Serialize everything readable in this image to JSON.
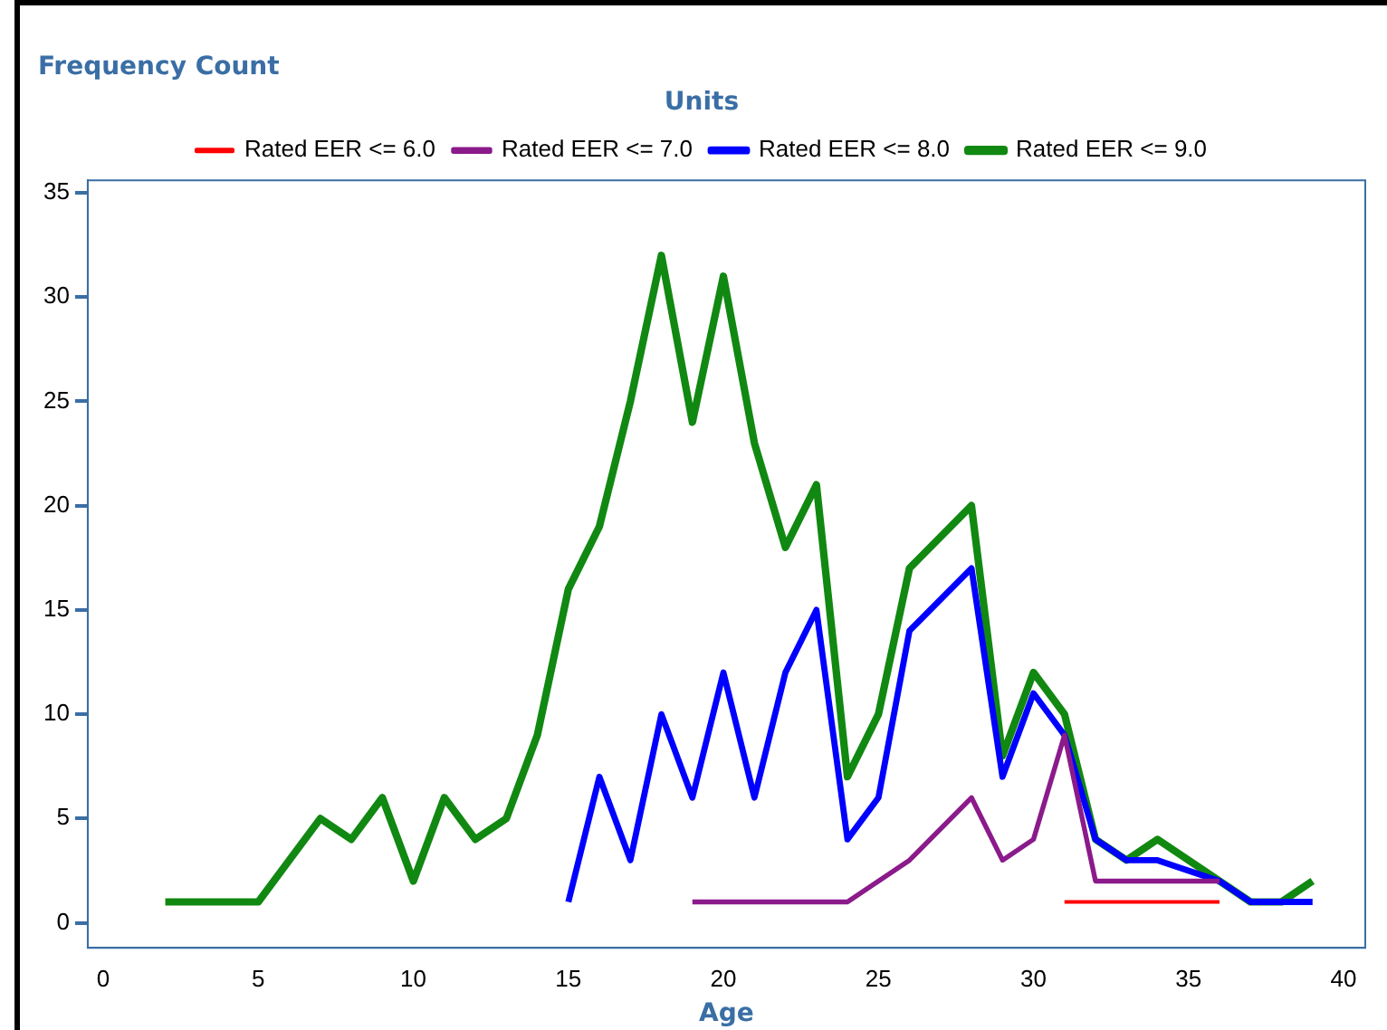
{
  "chart_data": {
    "type": "line",
    "ylabel": "Frequency Count",
    "xlabel": "Age",
    "legend_title": "Units",
    "legend": "top",
    "grid": false,
    "marker": "none",
    "line_style": "solid",
    "xlim": [
      -0.5,
      40.7
    ],
    "xticks": [
      0,
      5,
      10,
      15,
      20,
      25,
      30,
      35,
      40
    ],
    "ylim": [
      -1.2,
      35.6
    ],
    "yticks": [
      0,
      5,
      10,
      15,
      20,
      25,
      30,
      35
    ],
    "series": [
      {
        "name": "Rated EER <= 6.0",
        "color": "#ff0000",
        "x": [
          31,
          32,
          33,
          34,
          35,
          36
        ],
        "values": [
          1,
          1,
          1,
          1,
          1,
          1
        ]
      },
      {
        "name": "Rated EER <= 7.0",
        "color": "#8b1a8b",
        "x": [
          19,
          20,
          21,
          22,
          23,
          24,
          25,
          26,
          28,
          29,
          30,
          31,
          32,
          33,
          34,
          35,
          36
        ],
        "values": [
          1,
          1,
          1,
          1,
          1,
          1,
          2,
          3,
          6,
          3,
          4,
          9,
          2,
          2,
          2,
          2,
          2
        ]
      },
      {
        "name": "Rated EER <= 8.0",
        "color": "#0000ff",
        "x": [
          15,
          16,
          17,
          18,
          19,
          20,
          21,
          22,
          23,
          24,
          25,
          26,
          28,
          29,
          30,
          31,
          32,
          33,
          34,
          36,
          37,
          38,
          39
        ],
        "values": [
          1,
          7,
          3,
          10,
          6,
          12,
          6,
          12,
          15,
          4,
          6,
          14,
          17,
          7,
          11,
          9,
          4,
          3,
          3,
          2,
          1,
          1,
          1
        ]
      },
      {
        "name": "Rated EER <= 9.0",
        "color": "#118811",
        "x": [
          2,
          3,
          4,
          5,
          6,
          7,
          8,
          9,
          10,
          11,
          12,
          13,
          14,
          15,
          16,
          17,
          18,
          19,
          20,
          21,
          22,
          23,
          24,
          25,
          26,
          28,
          29,
          30,
          31,
          32,
          33,
          34,
          35,
          36,
          37,
          38,
          39
        ],
        "values": [
          1,
          1,
          1,
          1,
          3,
          5,
          4,
          6,
          2,
          6,
          4,
          5,
          9,
          16,
          19,
          25,
          32,
          24,
          31,
          23,
          18,
          21,
          7,
          10,
          17,
          20,
          8,
          12,
          10,
          4,
          3,
          4,
          3,
          2,
          1,
          1,
          2
        ]
      }
    ]
  }
}
